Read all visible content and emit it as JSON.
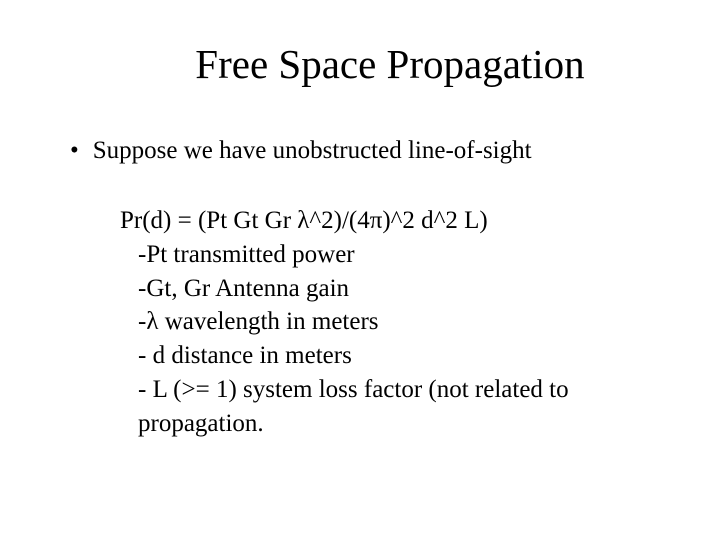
{
  "title": "Free Space Propagation",
  "bullet_marker": "•",
  "bullet_text": "Suppose we have unobstructed line-of-sight",
  "equation": "Pr(d) = (Pt Gt Gr λ^2)/(4π)^2 d^2 L)",
  "defs": [
    "-Pt  transmitted power",
    "-Gt, Gr Antenna gain",
    "-λ wavelength in meters",
    "- d distance in meters",
    "- L (>= 1) system loss factor (not related to propagation."
  ],
  "colors": {
    "background": "#ffffff",
    "text": "#000000"
  },
  "typography": {
    "title_fontsize": 41,
    "body_fontsize": 25,
    "font_family": "Times New Roman"
  }
}
